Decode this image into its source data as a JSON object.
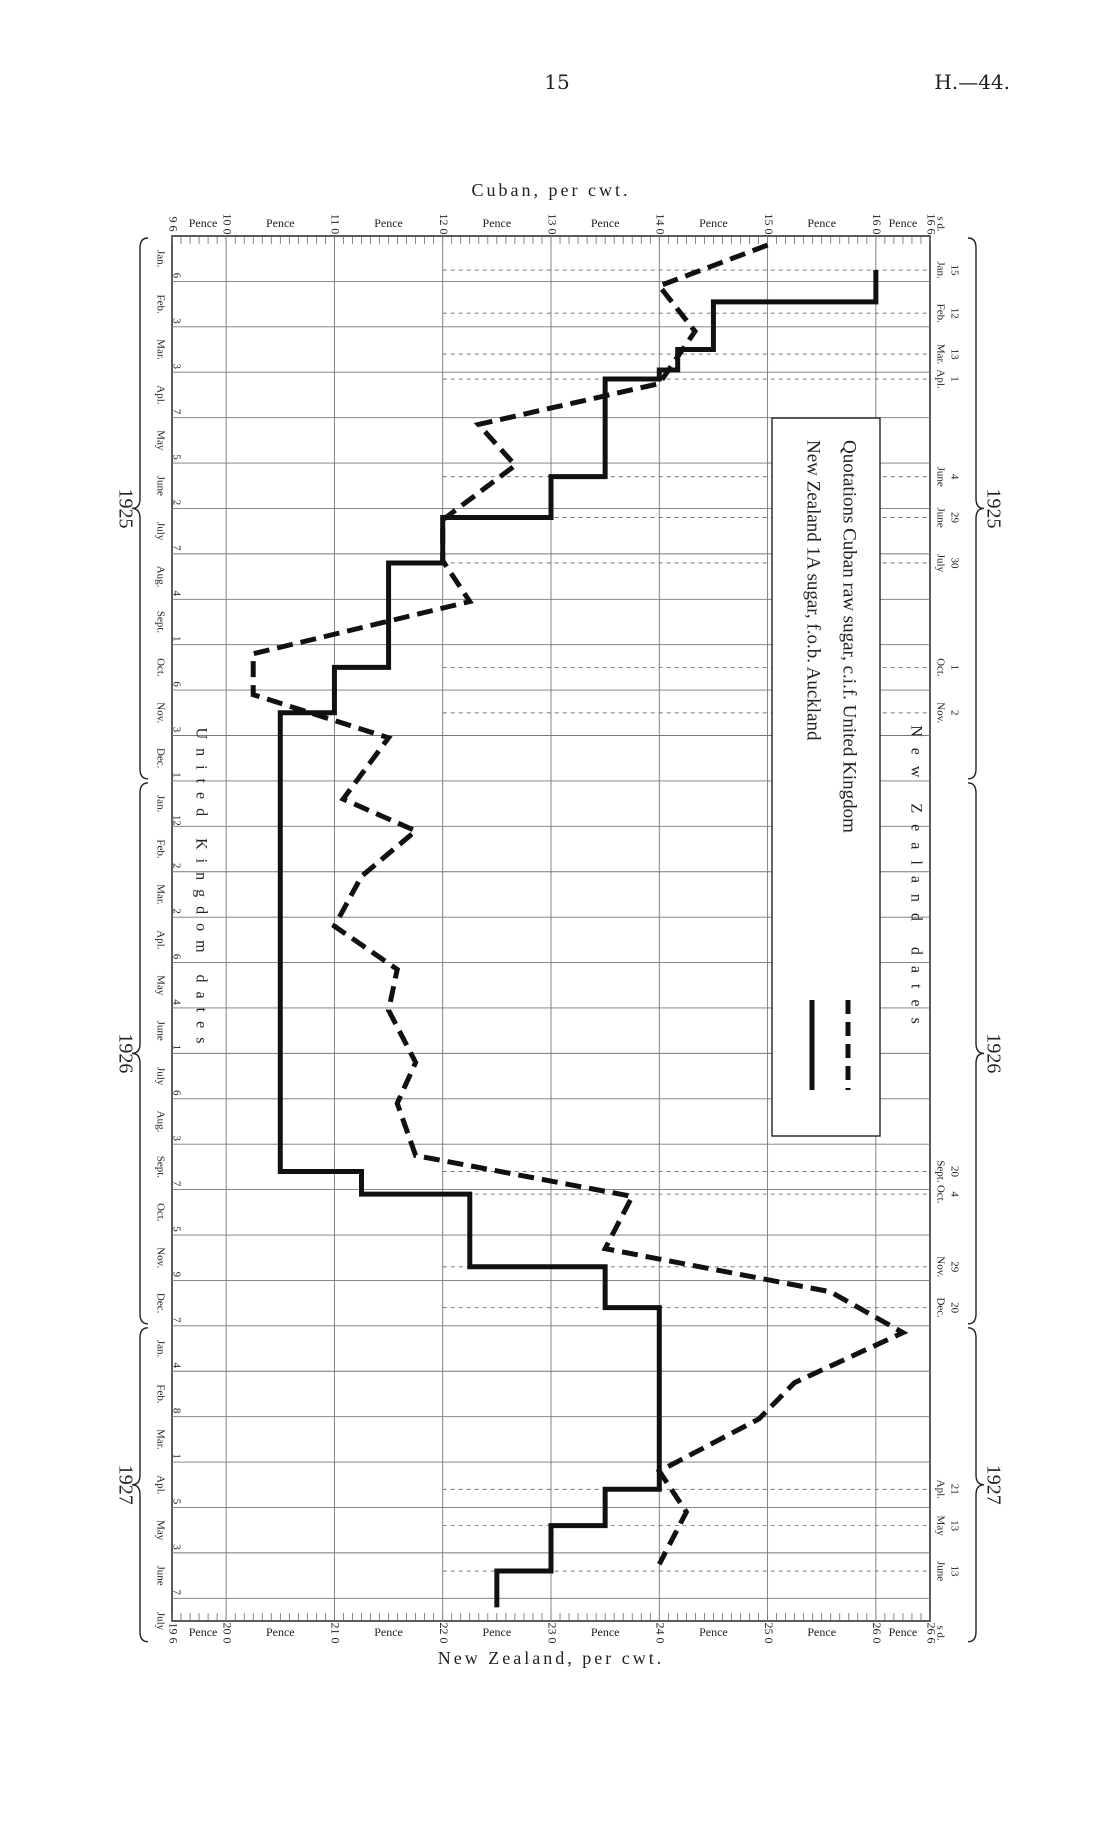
{
  "page": {
    "number": "15",
    "reference": "H.—44."
  },
  "chart_data": {
    "type": "line",
    "orientation": "rotated 90deg clockwise (time runs top to bottom)",
    "top_axis": {
      "label": "Cuban, per cwt.",
      "range": [
        9.5,
        16.5
      ],
      "ticks": [
        {
          "label": "9  6",
          "value": 9.5
        },
        {
          "label": "10  0",
          "value": 10
        },
        {
          "label": "11  0",
          "value": 11
        },
        {
          "label": "12  0",
          "value": 12
        },
        {
          "label": "13  0",
          "value": 13
        },
        {
          "label": "14  0",
          "value": 14
        },
        {
          "label": "15  0",
          "value": 15
        },
        {
          "label": "16  0",
          "value": 16
        },
        {
          "label": "16  6",
          "value": 16.5
        }
      ],
      "unit_label": "Pence",
      "corner_label": "s  d."
    },
    "bottom_axis": {
      "label": "New Zealand, per cwt.",
      "range": [
        19.5,
        26.5
      ],
      "ticks": [
        {
          "label": "19  6",
          "value": 19.5
        },
        {
          "label": "20  0",
          "value": 20
        },
        {
          "label": "21  0",
          "value": 21
        },
        {
          "label": "22  0",
          "value": 22
        },
        {
          "label": "23  0",
          "value": 23
        },
        {
          "label": "24  0",
          "value": 24
        },
        {
          "label": "25  0",
          "value": 25
        },
        {
          "label": "26  0",
          "value": 26
        },
        {
          "label": "26  6",
          "value": 26.5
        }
      ],
      "unit_label": "Pence",
      "corner_label": "s  d."
    },
    "months": [
      "Jan.",
      "Feb.",
      "Mar.",
      "Apl.",
      "May",
      "June",
      "July",
      "Aug.",
      "Sept.",
      "Oct.",
      "Nov.",
      "Dec.",
      "Jan.",
      "Feb.",
      "Mar.",
      "Apl.",
      "May",
      "June",
      "July",
      "Aug.",
      "Sept.",
      "Oct.",
      "Nov.",
      "Dec.",
      "Jan.",
      "Feb.",
      "Mar.",
      "Apl.",
      "May",
      "June",
      "July"
    ],
    "uk_day_labels": [
      "6",
      "3",
      "3",
      "7",
      "5",
      "2",
      "7",
      "4",
      "1",
      "6",
      "3",
      "1",
      "12",
      "2",
      "2",
      "6",
      "4",
      "1",
      "6",
      "3",
      "7",
      "5",
      "9",
      "7",
      "4",
      "8",
      "1",
      "5",
      "3",
      "7"
    ],
    "uk_group_label": "United Kingdom dates",
    "nz_group_label": "New Zealand dates",
    "year_groups": [
      {
        "year": "1925",
        "start_month": 0,
        "end_month": 12
      },
      {
        "year": "1926",
        "start_month": 12,
        "end_month": 24
      },
      {
        "year": "1927",
        "start_month": 24,
        "end_month": 31
      }
    ],
    "nz_date_labels": [
      {
        "day": "15",
        "month": "Jan.",
        "pos": 0.75
      },
      {
        "day": "12",
        "month": "Feb.",
        "pos": 1.7
      },
      {
        "day": "13",
        "month": "Mar.",
        "pos": 2.6
      },
      {
        "day": "1",
        "month": "Apl.",
        "pos": 3.15
      },
      {
        "day": "4",
        "month": "June",
        "pos": 5.3
      },
      {
        "day": "29",
        "month": "June",
        "pos": 6.2
      },
      {
        "day": "30",
        "month": "July",
        "pos": 7.2
      },
      {
        "day": "1",
        "month": "Oct.",
        "pos": 9.5
      },
      {
        "day": "2",
        "month": "Nov.",
        "pos": 10.5
      },
      {
        "day": "20",
        "month": "Sept.",
        "pos": 20.6
      },
      {
        "day": "4",
        "month": "Oct.",
        "pos": 21.1
      },
      {
        "day": "29",
        "month": "Nov.",
        "pos": 22.7
      },
      {
        "day": "20",
        "month": "Dec.",
        "pos": 23.6
      },
      {
        "day": "21",
        "month": "Apl.",
        "pos": 27.6
      },
      {
        "day": "13",
        "month": "May",
        "pos": 28.4
      },
      {
        "day": "13",
        "month": "June",
        "pos": 29.4
      }
    ],
    "series": [
      {
        "name": "Quotations Cuban raw sugar, c.i.f. United Kingdom",
        "style": "dashed",
        "axis": "top",
        "points": [
          {
            "t": 0.2,
            "v": 15.0
          },
          {
            "t": 1.1,
            "v": 14.0
          },
          {
            "t": 2.1,
            "v": 14.33
          },
          {
            "t": 3.25,
            "v": 14.0
          },
          {
            "t": 4.15,
            "v": 12.33
          },
          {
            "t": 5.05,
            "v": 12.67
          },
          {
            "t": 6.25,
            "v": 12.0
          },
          {
            "t": 7.15,
            "v": 12.0
          },
          {
            "t": 8.05,
            "v": 12.25
          },
          {
            "t": 9.2,
            "v": 10.25
          },
          {
            "t": 10.1,
            "v": 10.25
          },
          {
            "t": 11.05,
            "v": 11.5
          },
          {
            "t": 12.4,
            "v": 11.08
          },
          {
            "t": 13.1,
            "v": 11.75
          },
          {
            "t": 14.1,
            "v": 11.25
          },
          {
            "t": 15.2,
            "v": 11.0
          },
          {
            "t": 16.15,
            "v": 11.58
          },
          {
            "t": 17.05,
            "v": 11.5
          },
          {
            "t": 18.2,
            "v": 11.75
          },
          {
            "t": 19.1,
            "v": 11.58
          },
          {
            "t": 20.25,
            "v": 11.75
          },
          {
            "t": 21.15,
            "v": 13.75
          },
          {
            "t": 22.3,
            "v": 13.5
          },
          {
            "t": 23.25,
            "v": 15.58
          },
          {
            "t": 24.15,
            "v": 16.25
          },
          {
            "t": 25.25,
            "v": 15.25
          },
          {
            "t": 26.05,
            "v": 14.92
          },
          {
            "t": 27.2,
            "v": 14.0
          },
          {
            "t": 28.1,
            "v": 14.25
          },
          {
            "t": 29.25,
            "v": 14.0
          }
        ]
      },
      {
        "name": "New Zealand 1A sugar, f.o.b. Auckland",
        "style": "solid",
        "axis": "bottom",
        "points": [
          {
            "t": 0.75,
            "v": 26.0
          },
          {
            "t": 1.45,
            "v": 26.0
          },
          {
            "t": 1.45,
            "v": 24.5
          },
          {
            "t": 2.5,
            "v": 24.5
          },
          {
            "t": 2.5,
            "v": 24.17
          },
          {
            "t": 2.95,
            "v": 24.17
          },
          {
            "t": 2.95,
            "v": 24.0
          },
          {
            "t": 3.15,
            "v": 24.0
          },
          {
            "t": 3.15,
            "v": 23.5
          },
          {
            "t": 5.3,
            "v": 23.5
          },
          {
            "t": 5.3,
            "v": 23.0
          },
          {
            "t": 6.2,
            "v": 23.0
          },
          {
            "t": 6.2,
            "v": 22.0
          },
          {
            "t": 7.2,
            "v": 22.0
          },
          {
            "t": 7.2,
            "v": 21.5
          },
          {
            "t": 9.5,
            "v": 21.5
          },
          {
            "t": 9.5,
            "v": 21.0
          },
          {
            "t": 10.5,
            "v": 21.0
          },
          {
            "t": 10.5,
            "v": 20.5
          },
          {
            "t": 20.6,
            "v": 20.5
          },
          {
            "t": 20.6,
            "v": 21.25
          },
          {
            "t": 21.1,
            "v": 21.25
          },
          {
            "t": 21.1,
            "v": 22.25
          },
          {
            "t": 22.7,
            "v": 22.25
          },
          {
            "t": 22.7,
            "v": 23.5
          },
          {
            "t": 23.6,
            "v": 23.5
          },
          {
            "t": 23.6,
            "v": 24.0
          },
          {
            "t": 27.6,
            "v": 24.0
          },
          {
            "t": 27.6,
            "v": 23.5
          },
          {
            "t": 28.4,
            "v": 23.5
          },
          {
            "t": 28.4,
            "v": 23.0
          },
          {
            "t": 29.4,
            "v": 23.0
          },
          {
            "t": 29.4,
            "v": 22.5
          },
          {
            "t": 30.2,
            "v": 22.5
          }
        ]
      }
    ]
  }
}
